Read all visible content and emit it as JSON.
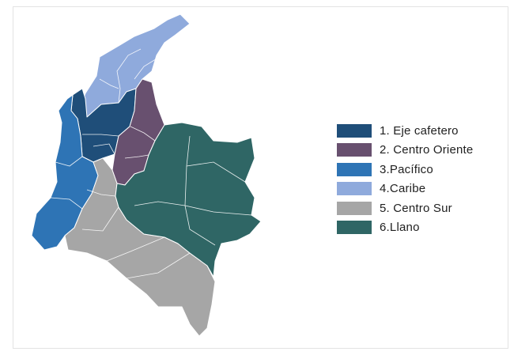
{
  "map": {
    "regions": [
      {
        "id": "eje-cafetero",
        "label": "1. Eje cafetero",
        "color": "#1f4e79"
      },
      {
        "id": "centro-oriente",
        "label": "2. Centro Oriente",
        "color": "#68506f"
      },
      {
        "id": "pacifico",
        "label": "3.Pacífico",
        "color": "#2e74b5"
      },
      {
        "id": "caribe",
        "label": "4.Caribe",
        "color": "#8faadc"
      },
      {
        "id": "centro-sur",
        "label": "5. Centro Sur",
        "color": "#a6a6a6"
      },
      {
        "id": "llano",
        "label": "6.Llano",
        "color": "#2f6665"
      }
    ]
  }
}
